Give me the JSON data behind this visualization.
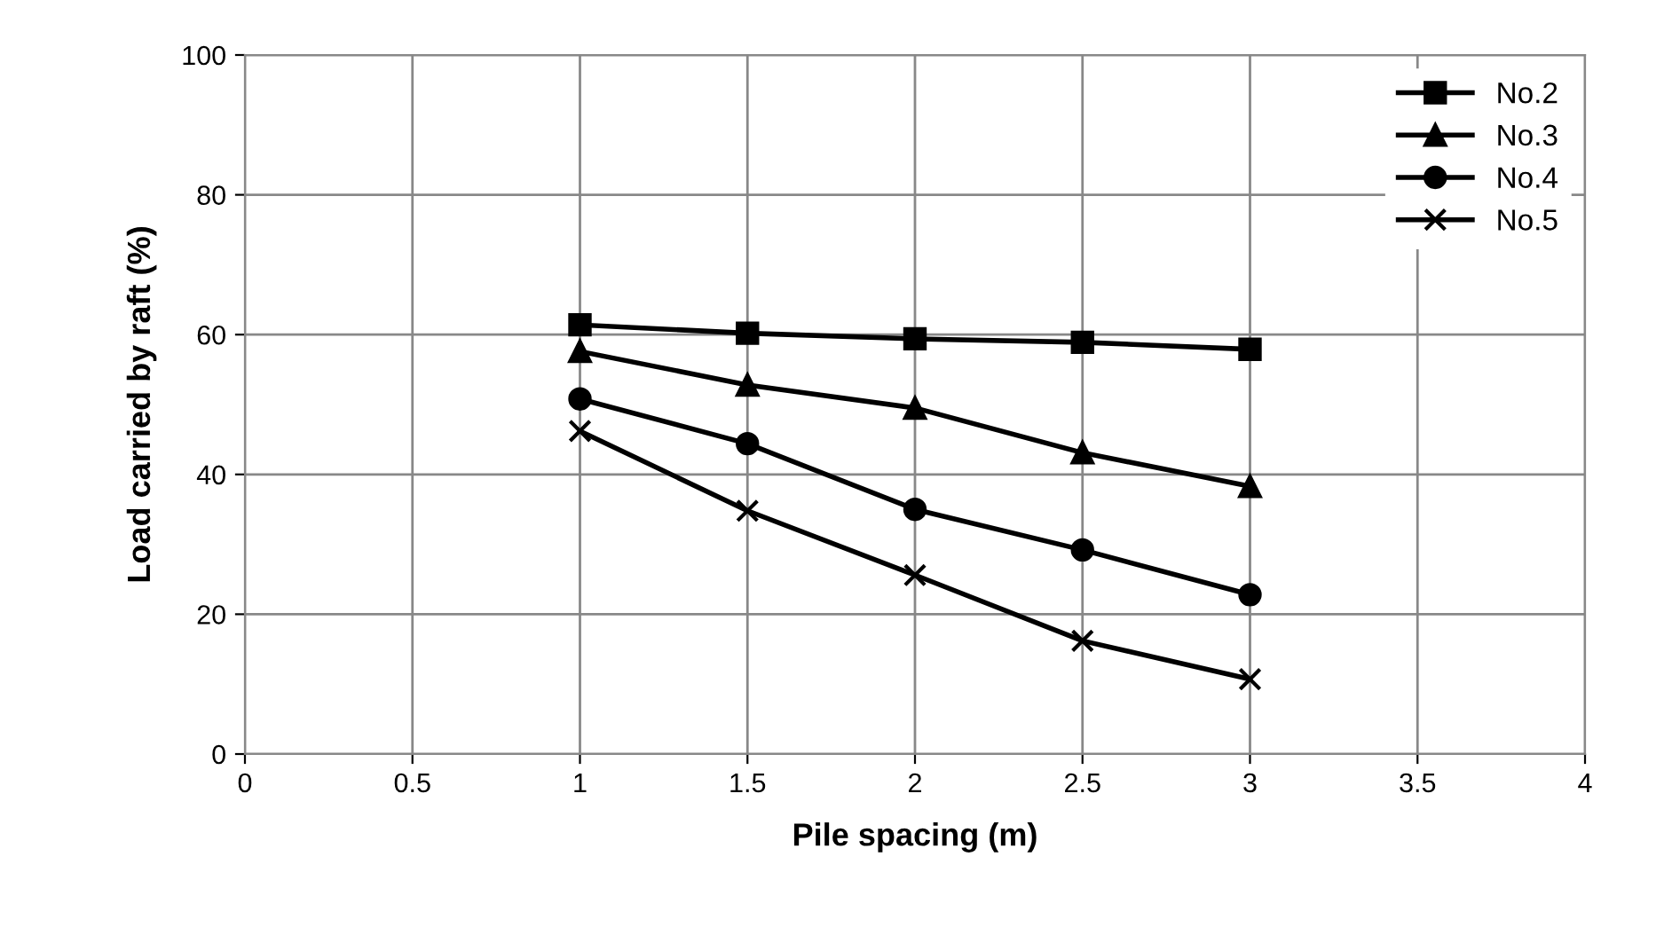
{
  "chart_data": {
    "type": "line",
    "xlabel": "Pile spacing (m)",
    "ylabel": "Load carried by raft (%)",
    "x": [
      1,
      1.5,
      2,
      2.5,
      3
    ],
    "series": [
      {
        "name": "No.2",
        "color": "#000000",
        "marker": "square",
        "values": [
          61.4,
          60.2,
          59.4,
          58.9,
          57.9
        ]
      },
      {
        "name": "No.3",
        "color": "#000000",
        "marker": "triangle",
        "values": [
          57.6,
          52.8,
          49.5,
          43.1,
          38.3
        ]
      },
      {
        "name": "No.4",
        "color": "#000000",
        "marker": "circle",
        "values": [
          50.8,
          44.4,
          35.0,
          29.2,
          22.8
        ]
      },
      {
        "name": "No.5",
        "color": "#000000",
        "marker": "cross",
        "values": [
          46.2,
          34.8,
          25.6,
          16.2,
          10.7
        ]
      }
    ],
    "xlim": [
      0,
      4
    ],
    "xticks": [
      0,
      0.5,
      1,
      1.5,
      2,
      2.5,
      3,
      3.5,
      4
    ],
    "ylim": [
      0,
      100
    ],
    "yticks": [
      0,
      20,
      40,
      60,
      80,
      100
    ],
    "grid": true,
    "legend": "top right",
    "line_style": "solid"
  }
}
